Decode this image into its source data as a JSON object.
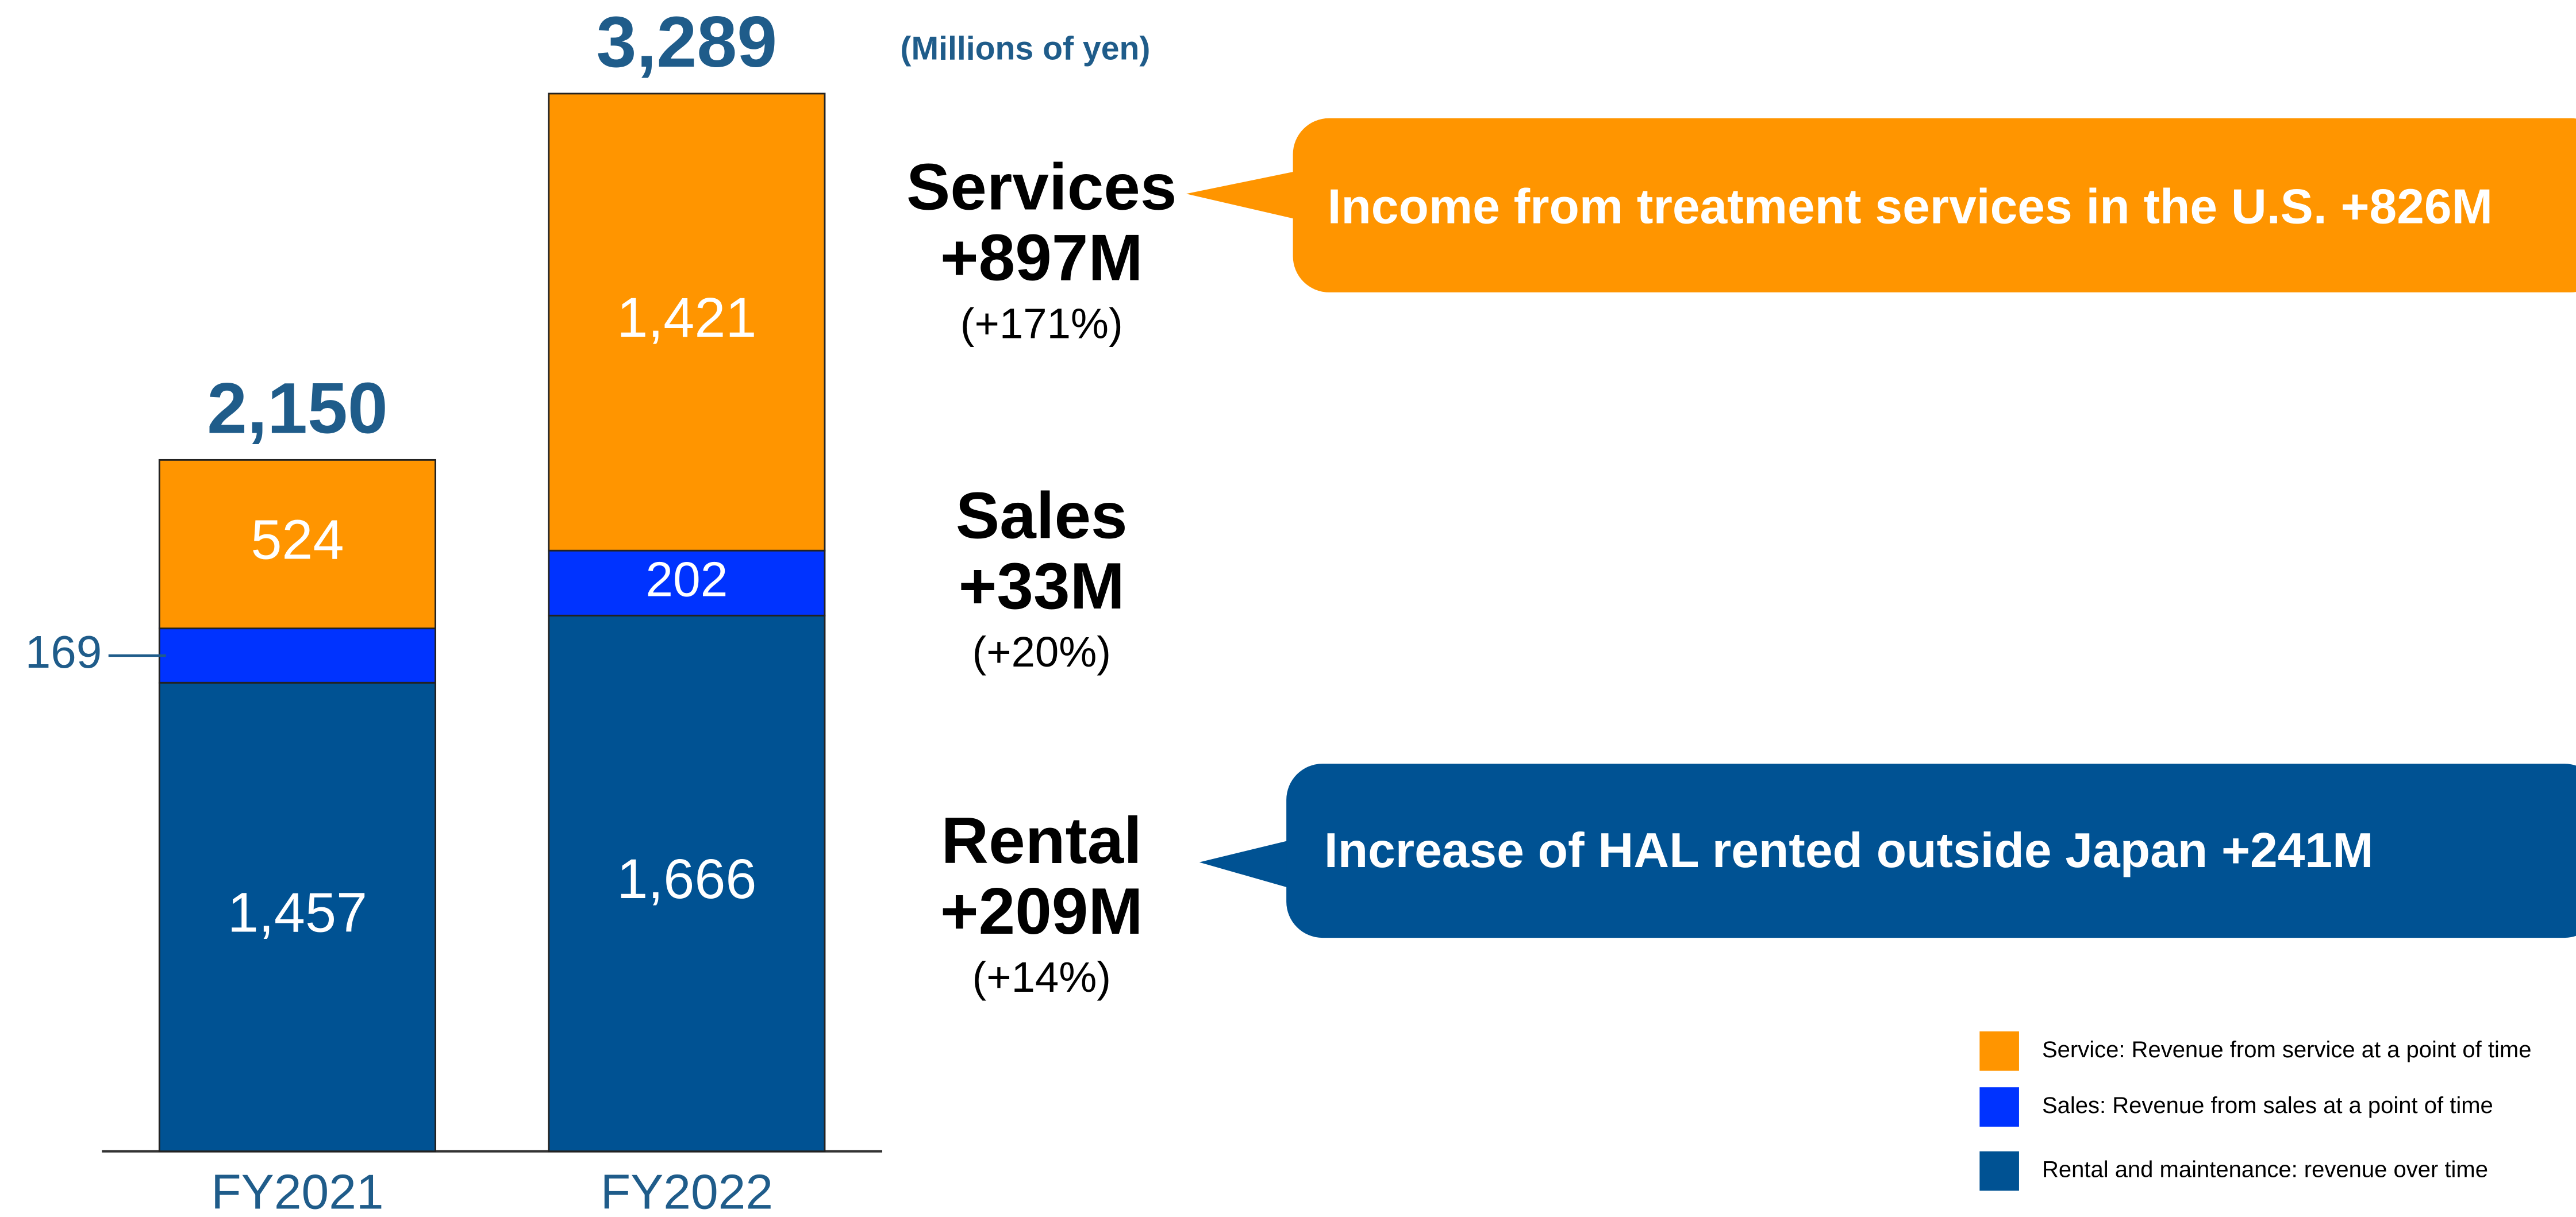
{
  "chart_data": {
    "type": "stacked_bar",
    "unit_label": "(Millions of yen)",
    "categories": [
      "FY2021",
      "FY2022"
    ],
    "series": [
      {
        "name": "Rental and maintenance: revenue over time",
        "color": "#005293",
        "values": [
          1457,
          1666
        ],
        "value_labels": [
          "1,457",
          "1,666"
        ]
      },
      {
        "name": "Sales: Revenue from sales at a point of time",
        "color": "#0033ff",
        "values": [
          169,
          202
        ],
        "value_labels": [
          "169",
          "202"
        ]
      },
      {
        "name": "Service: Revenue from service at a point of time",
        "color": "#ff9500",
        "values": [
          524,
          1421
        ],
        "value_labels": [
          "524",
          "1,421"
        ]
      }
    ],
    "totals": [
      2150,
      3289
    ],
    "total_labels": [
      "2,150",
      "3,289"
    ],
    "annotations": [
      {
        "title": "Services",
        "change": "+897M",
        "percent": "(+171%)",
        "callout": "Income from treatment services in the U.S. +826M"
      },
      {
        "title": "Sales",
        "change": "+33M",
        "percent": "(+20%)"
      },
      {
        "title": "Rental",
        "change": "+209M",
        "percent": "(+14%)",
        "callout": "Increase of HAL rented outside Japan +241M"
      }
    ]
  }
}
